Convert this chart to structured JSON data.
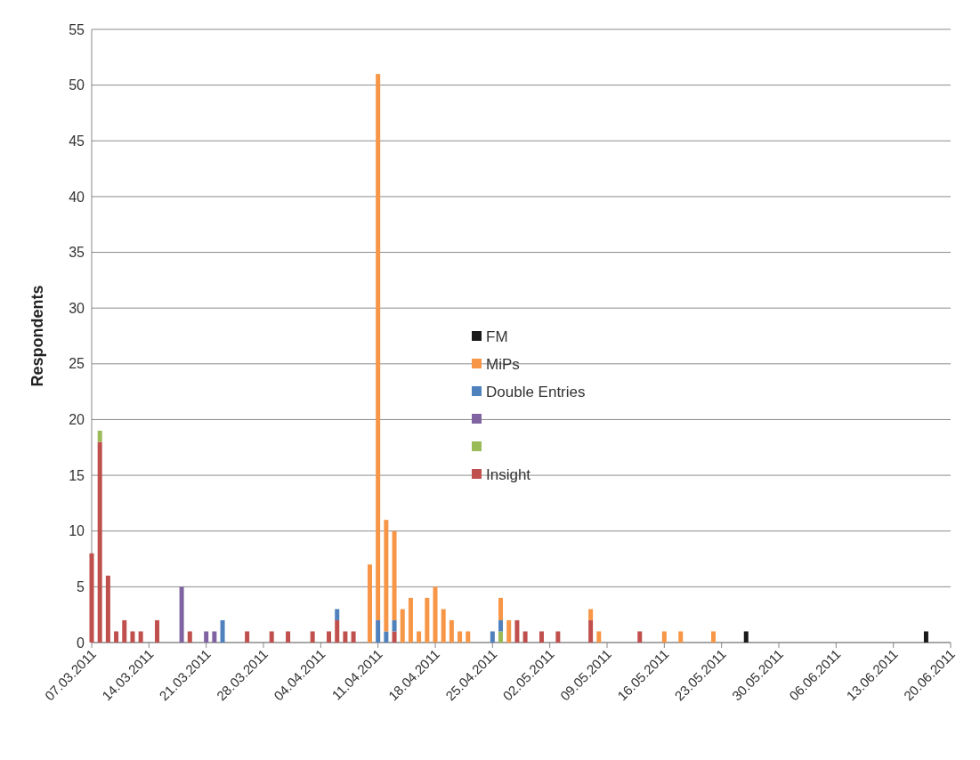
{
  "chart_data": {
    "type": "bar",
    "stacked": true,
    "ylabel": "Respondents",
    "x": [
      "2011-03-07",
      "2011-03-08",
      "2011-03-09",
      "2011-03-10",
      "2011-03-11",
      "2011-03-12",
      "2011-03-13",
      "2011-03-15",
      "2011-03-18",
      "2011-03-19",
      "2011-03-21",
      "2011-03-22",
      "2011-03-23",
      "2011-03-26",
      "2011-03-29",
      "2011-03-31",
      "2011-04-03",
      "2011-04-05",
      "2011-04-06",
      "2011-04-07",
      "2011-04-08",
      "2011-04-10",
      "2011-04-11",
      "2011-04-12",
      "2011-04-13",
      "2011-04-14",
      "2011-04-15",
      "2011-04-16",
      "2011-04-17",
      "2011-04-18",
      "2011-04-19",
      "2011-04-20",
      "2011-04-21",
      "2011-04-22",
      "2011-04-25",
      "2011-04-26",
      "2011-04-27",
      "2011-04-28",
      "2011-04-29",
      "2011-05-01",
      "2011-05-03",
      "2011-05-07",
      "2011-05-08",
      "2011-05-13",
      "2011-05-16",
      "2011-05-18",
      "2011-05-22",
      "2011-05-26",
      "2011-06-17"
    ],
    "series": [
      {
        "name": "Insight",
        "color": "#c0504d",
        "values": [
          8,
          18,
          6,
          1,
          2,
          1,
          1,
          2,
          null,
          1,
          null,
          null,
          null,
          1,
          1,
          1,
          1,
          1,
          2,
          1,
          1,
          null,
          null,
          null,
          1,
          null,
          null,
          null,
          null,
          null,
          null,
          null,
          null,
          null,
          null,
          null,
          null,
          2,
          1,
          1,
          1,
          2,
          null,
          1,
          null,
          null,
          null,
          null,
          null
        ]
      },
      {
        "color": "#9bbb59",
        "values": [
          null,
          1,
          null,
          null,
          null,
          null,
          null,
          null,
          null,
          null,
          null,
          null,
          null,
          null,
          null,
          null,
          null,
          null,
          null,
          null,
          null,
          null,
          null,
          null,
          null,
          null,
          null,
          null,
          null,
          null,
          null,
          null,
          null,
          null,
          null,
          1,
          null,
          null,
          null,
          null,
          null,
          null,
          null,
          null,
          null,
          null,
          null,
          null,
          null
        ]
      },
      {
        "color": "#8064a2",
        "values": [
          null,
          null,
          null,
          null,
          null,
          null,
          null,
          null,
          5,
          null,
          1,
          1,
          null,
          null,
          null,
          null,
          null,
          null,
          null,
          null,
          null,
          null,
          null,
          null,
          null,
          null,
          null,
          null,
          null,
          null,
          null,
          null,
          null,
          null,
          null,
          null,
          null,
          null,
          null,
          null,
          null,
          null,
          null,
          null,
          null,
          null,
          null,
          null,
          null
        ]
      },
      {
        "name": "Double Entries",
        "color": "#4f81bd",
        "values": [
          null,
          null,
          null,
          null,
          null,
          null,
          null,
          null,
          null,
          null,
          null,
          null,
          2,
          null,
          null,
          null,
          null,
          null,
          1,
          null,
          null,
          null,
          2,
          1,
          1,
          null,
          null,
          null,
          null,
          null,
          null,
          null,
          null,
          null,
          1,
          1,
          null,
          null,
          null,
          null,
          null,
          null,
          null,
          null,
          null,
          null,
          null,
          null,
          null
        ]
      },
      {
        "name": "MiPs",
        "color": "#f79646",
        "values": [
          null,
          null,
          null,
          null,
          null,
          null,
          null,
          null,
          null,
          null,
          null,
          null,
          null,
          null,
          null,
          null,
          null,
          null,
          null,
          null,
          null,
          7,
          49,
          10,
          8,
          3,
          4,
          1,
          4,
          5,
          3,
          2,
          1,
          1,
          null,
          2,
          2,
          null,
          null,
          null,
          null,
          1,
          1,
          null,
          1,
          1,
          1,
          null,
          null
        ]
      },
      {
        "name": "FM",
        "color": "#1a1a1a",
        "values": [
          null,
          null,
          null,
          null,
          null,
          null,
          null,
          null,
          null,
          null,
          null,
          null,
          null,
          null,
          null,
          null,
          null,
          null,
          null,
          null,
          null,
          null,
          null,
          null,
          null,
          null,
          null,
          null,
          null,
          null,
          null,
          null,
          null,
          null,
          null,
          null,
          null,
          null,
          null,
          null,
          null,
          null,
          null,
          null,
          null,
          null,
          null,
          1,
          1
        ]
      }
    ],
    "xlim": [
      "2011-03-07",
      "2011-06-20"
    ],
    "xticks": [
      {
        "value": "2011-03-07",
        "label": "07.03.2011"
      },
      {
        "value": "2011-03-14",
        "label": "14.03.2011"
      },
      {
        "value": "2011-03-21",
        "label": "21.03.2011"
      },
      {
        "value": "2011-03-28",
        "label": "28.03.2011"
      },
      {
        "value": "2011-04-04",
        "label": "04.04.2011"
      },
      {
        "value": "2011-04-11",
        "label": "11.04.2011"
      },
      {
        "value": "2011-04-18",
        "label": "18.04.2011"
      },
      {
        "value": "2011-04-25",
        "label": "25.04.2011"
      },
      {
        "value": "2011-05-02",
        "label": "02.05.2011"
      },
      {
        "value": "2011-05-09",
        "label": "09.05.2011"
      },
      {
        "value": "2011-05-16",
        "label": "16.05.2011"
      },
      {
        "value": "2011-05-23",
        "label": "23.05.2011"
      },
      {
        "value": "2011-05-30",
        "label": "30.05.2011"
      },
      {
        "value": "2011-06-06",
        "label": "06.06.2011"
      },
      {
        "value": "2011-06-13",
        "label": "13.06.2011"
      },
      {
        "value": "2011-06-20",
        "label": "20.06.2011"
      }
    ],
    "ylim": [
      0,
      55
    ],
    "yticks": [
      0,
      5,
      10,
      15,
      20,
      25,
      30,
      35,
      40,
      45,
      50,
      55
    ],
    "grid": "y",
    "legend": "center"
  }
}
